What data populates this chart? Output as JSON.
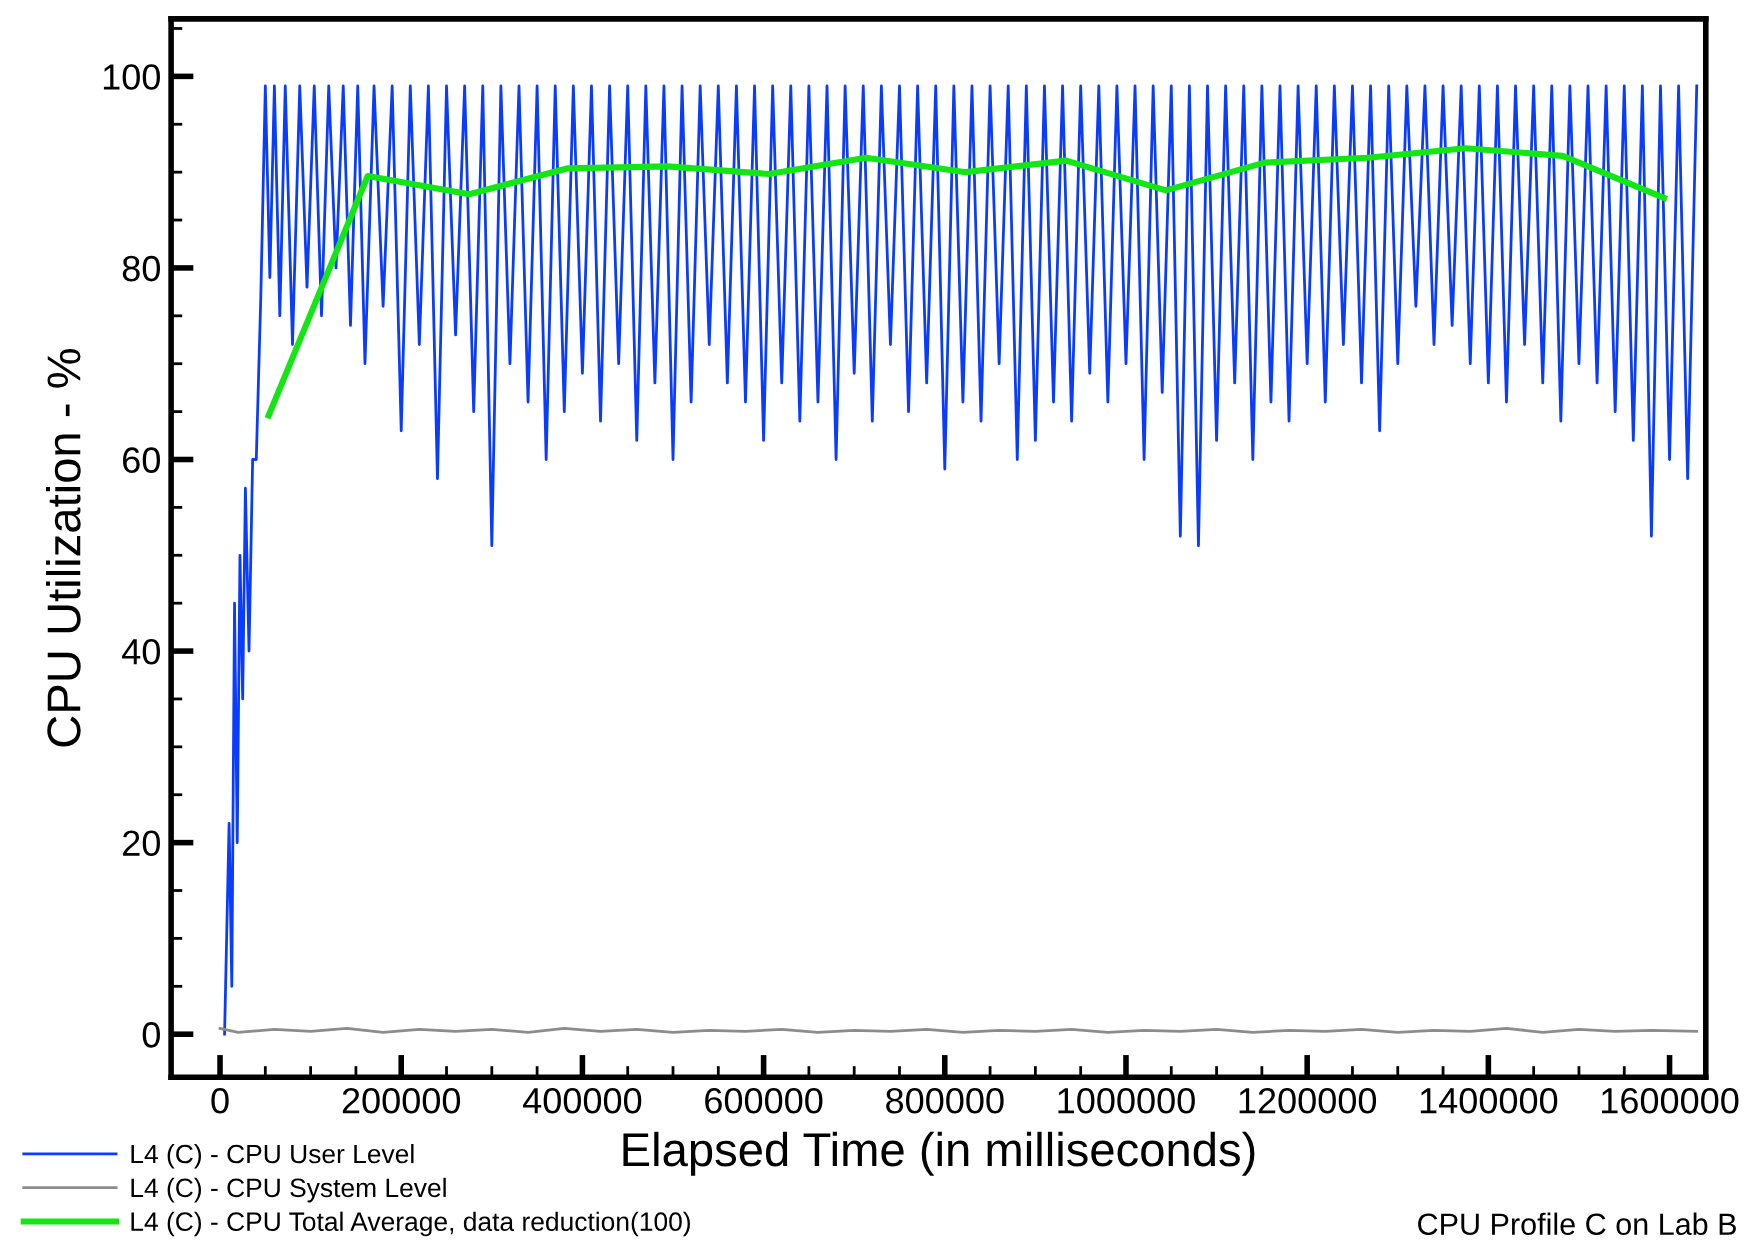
{
  "chart_data": {
    "type": "line",
    "xlabel": "Elapsed Time (in milliseconds)",
    "ylabel": "CPU Utilization - %",
    "annotations": [
      "CPU Profile C on Lab B"
    ],
    "xlim": [
      -54000,
      1640000
    ],
    "ylim": [
      -4.5,
      106
    ],
    "xticks": [
      0,
      {
        "value": 50000,
        "label": null
      },
      {
        "value": 100000,
        "label": null
      },
      {
        "value": 150000,
        "label": null
      },
      200000,
      {
        "value": 250000,
        "label": null
      },
      {
        "value": 300000,
        "label": null
      },
      {
        "value": 350000,
        "label": null
      },
      400000,
      {
        "value": 450000,
        "label": null
      },
      {
        "value": 500000,
        "label": null
      },
      {
        "value": 550000,
        "label": null
      },
      600000,
      {
        "value": 650000,
        "label": null
      },
      {
        "value": 700000,
        "label": null
      },
      {
        "value": 750000,
        "label": null
      },
      800000,
      {
        "value": 850000,
        "label": null
      },
      {
        "value": 900000,
        "label": null
      },
      {
        "value": 950000,
        "label": null
      },
      1000000,
      {
        "value": 1050000,
        "label": null
      },
      {
        "value": 1100000,
        "label": null
      },
      {
        "value": 1150000,
        "label": null
      },
      1200000,
      {
        "value": 1250000,
        "label": null
      },
      {
        "value": 1300000,
        "label": null
      },
      {
        "value": 1350000,
        "label": null
      },
      1400000,
      {
        "value": 1450000,
        "label": null
      },
      {
        "value": 1500000,
        "label": null
      },
      {
        "value": 1550000,
        "label": null
      },
      1600000
    ],
    "yticks": [
      0,
      {
        "value": 5,
        "label": null
      },
      {
        "value": 10,
        "label": null
      },
      {
        "value": 15,
        "label": null
      },
      20,
      {
        "value": 25,
        "label": null
      },
      {
        "value": 30,
        "label": null
      },
      {
        "value": 35,
        "label": null
      },
      40,
      {
        "value": 45,
        "label": null
      },
      {
        "value": 50,
        "label": null
      },
      {
        "value": 55,
        "label": null
      },
      60,
      {
        "value": 65,
        "label": null
      },
      {
        "value": 70,
        "label": null
      },
      {
        "value": 75,
        "label": null
      },
      80,
      {
        "value": 85,
        "label": null
      },
      {
        "value": 90,
        "label": null
      },
      {
        "value": 95,
        "label": null
      },
      100,
      {
        "value": 105,
        "label": null
      }
    ],
    "grid": false,
    "legend": "bottom left",
    "marker": "none",
    "line_style": "solid",
    "series": [
      {
        "name": "L4 (C) - CPU User Level",
        "color": "#0a3cff",
        "x": [
          5000,
          10000,
          13000,
          16000,
          19000,
          22000,
          25000,
          28000,
          32000,
          36000,
          40000,
          45000,
          50000,
          55000,
          60000,
          66000,
          72000,
          80000,
          88000,
          96000,
          104000,
          112000,
          120000,
          128000,
          136000,
          144000,
          152000,
          160000,
          170000,
          180000,
          190000,
          200000,
          210000,
          220000,
          230000,
          240000,
          250000,
          260000,
          270000,
          280000,
          290000,
          300000,
          310000,
          320000,
          330000,
          340000,
          350000,
          360000,
          370000,
          380000,
          390000,
          400000,
          410000,
          420000,
          430000,
          440000,
          450000,
          460000,
          470000,
          480000,
          490000,
          500000,
          510000,
          520000,
          530000,
          540000,
          550000,
          560000,
          570000,
          580000,
          590000,
          600000,
          610000,
          620000,
          630000,
          640000,
          650000,
          660000,
          670000,
          680000,
          690000,
          700000,
          710000,
          720000,
          730000,
          740000,
          750000,
          760000,
          770000,
          780000,
          790000,
          800000,
          810000,
          820000,
          830000,
          840000,
          850000,
          860000,
          870000,
          880000,
          890000,
          900000,
          910000,
          920000,
          930000,
          940000,
          950000,
          960000,
          970000,
          980000,
          990000,
          1000000,
          1010000,
          1020000,
          1030000,
          1040000,
          1050000,
          1060000,
          1070000,
          1080000,
          1090000,
          1100000,
          1110000,
          1120000,
          1130000,
          1140000,
          1150000,
          1160000,
          1170000,
          1180000,
          1190000,
          1200000,
          1210000,
          1220000,
          1230000,
          1240000,
          1250000,
          1260000,
          1270000,
          1280000,
          1290000,
          1300000,
          1310000,
          1320000,
          1330000,
          1340000,
          1350000,
          1360000,
          1370000,
          1380000,
          1390000,
          1400000,
          1410000,
          1420000,
          1430000,
          1440000,
          1450000,
          1460000,
          1470000,
          1480000,
          1490000,
          1500000,
          1510000,
          1520000,
          1530000,
          1540000,
          1550000,
          1560000,
          1570000,
          1580000,
          1590000,
          1600000,
          1610000,
          1620000,
          1630000
        ],
        "values": [
          0,
          22,
          5,
          45,
          20,
          50,
          35,
          57,
          40,
          60,
          60,
          77,
          99,
          79,
          99,
          75,
          99,
          72,
          99,
          78,
          99,
          75,
          99,
          80,
          99,
          74,
          99,
          70,
          99,
          76,
          99,
          63,
          99,
          72,
          99,
          58,
          99,
          73,
          99,
          65,
          99,
          51,
          99,
          70,
          99,
          66,
          99,
          60,
          99,
          65,
          99,
          69,
          99,
          64,
          99,
          70,
          99,
          62,
          99,
          68,
          99,
          60,
          99,
          66,
          99,
          72,
          99,
          68,
          99,
          66,
          99,
          62,
          99,
          68,
          99,
          64,
          99,
          66,
          99,
          60,
          99,
          69,
          99,
          64,
          99,
          72,
          99,
          65,
          99,
          68,
          99,
          59,
          99,
          66,
          99,
          64,
          99,
          70,
          99,
          60,
          99,
          62,
          99,
          66,
          99,
          64,
          99,
          69,
          99,
          66,
          99,
          70,
          99,
          60,
          99,
          67,
          99,
          52,
          99,
          51,
          99,
          62,
          99,
          68,
          99,
          60,
          99,
          66,
          99,
          64,
          99,
          70,
          99,
          66,
          99,
          72,
          99,
          68,
          99,
          63,
          99,
          70,
          99,
          76,
          99,
          72,
          99,
          74,
          99,
          70,
          99,
          68,
          99,
          66,
          99,
          72,
          99,
          68,
          99,
          64,
          99,
          70,
          99,
          68,
          99,
          65,
          99,
          62,
          99,
          52,
          99,
          60,
          99,
          58,
          99
        ]
      },
      {
        "name": "L4 (C) - CPU System Level",
        "color": "#8c8c8c",
        "x": [
          0,
          20000,
          60000,
          100000,
          140000,
          180000,
          220000,
          260000,
          300000,
          340000,
          380000,
          420000,
          460000,
          500000,
          540000,
          580000,
          620000,
          660000,
          700000,
          740000,
          780000,
          820000,
          860000,
          900000,
          940000,
          980000,
          1020000,
          1060000,
          1100000,
          1140000,
          1180000,
          1220000,
          1260000,
          1300000,
          1340000,
          1380000,
          1420000,
          1460000,
          1500000,
          1540000,
          1580000,
          1630000
        ],
        "values": [
          0.6,
          0.2,
          0.5,
          0.3,
          0.6,
          0.2,
          0.5,
          0.3,
          0.5,
          0.2,
          0.6,
          0.3,
          0.5,
          0.2,
          0.4,
          0.3,
          0.5,
          0.2,
          0.4,
          0.3,
          0.5,
          0.2,
          0.4,
          0.3,
          0.5,
          0.2,
          0.4,
          0.3,
          0.5,
          0.2,
          0.4,
          0.3,
          0.5,
          0.2,
          0.4,
          0.3,
          0.6,
          0.2,
          0.5,
          0.3,
          0.4,
          0.3
        ]
      },
      {
        "name": "L4 (C) - CPU Total Average, data reduction(100)",
        "color": "#14e614",
        "x": [
          53700,
          163000,
          275000,
          384000,
          494000,
          606000,
          713000,
          823000,
          934000,
          1044000,
          1153000,
          1267000,
          1375000,
          1482000,
          1594000
        ],
        "values": [
          64.6,
          89.6,
          87.7,
          90.4,
          90.6,
          89.8,
          91.5,
          90.0,
          91.2,
          88.1,
          91.0,
          91.5,
          92.5,
          91.7,
          87.3
        ]
      }
    ]
  }
}
